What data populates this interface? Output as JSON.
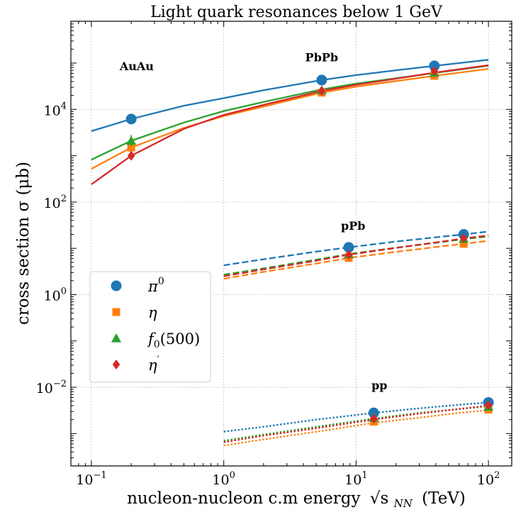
{
  "chart_data": {
    "type": "scatter",
    "title": "Light quark resonances below 1 GeV",
    "xlabel": "nucleon-nucleon c.m energy",
    "xlabel_sym": "√s",
    "xlabel_sub": "NN",
    "xlabel_unit": "(TeV)",
    "ylabel": "cross section σ (μb)",
    "x_scale": "log",
    "y_scale": "log",
    "xlim": [
      0.07,
      150
    ],
    "ylim": [
      0.0002,
      800000
    ],
    "x_ticks": [
      {
        "value": 0.1,
        "base": "10",
        "exp": "−1"
      },
      {
        "value": 1,
        "base": "10",
        "exp": "0"
      },
      {
        "value": 10,
        "base": "10",
        "exp": "1"
      },
      {
        "value": 100,
        "base": "10",
        "exp": "2"
      }
    ],
    "y_ticks": [
      {
        "value": 0.01,
        "base": "10",
        "exp": "−2"
      },
      {
        "value": 1,
        "base": "10",
        "exp": "0"
      },
      {
        "value": 100,
        "base": "10",
        "exp": "2"
      },
      {
        "value": 10000,
        "base": "10",
        "exp": "4"
      }
    ],
    "grid": true,
    "legend_position": "center-left",
    "annotations": [
      {
        "text": "AuAu",
        "x": 0.22,
        "y": 70000
      },
      {
        "text": "PbPb",
        "x": 5.5,
        "y": 110000
      },
      {
        "text": "pPb",
        "x": 9.5,
        "y": 25
      },
      {
        "text": "pp",
        "x": 15,
        "y": 0.009
      }
    ],
    "series": [
      {
        "name": "π0",
        "legend_base": "π",
        "legend_sup": "0",
        "color": "#1f77b4",
        "marker": "circle",
        "points": [
          {
            "x": 0.2,
            "y": 6200
          },
          {
            "x": 5.5,
            "y": 43000
          },
          {
            "x": 39,
            "y": 87000
          },
          {
            "x": 8.8,
            "y": 10.5
          },
          {
            "x": 65,
            "y": 20
          },
          {
            "x": 13.6,
            "y": 0.0028
          },
          {
            "x": 100,
            "y": 0.0047
          }
        ],
        "curves": [
          {
            "style": "solid",
            "points": [
              [
                0.1,
                3400
              ],
              [
                0.2,
                6200
              ],
              [
                0.5,
                12000
              ],
              [
                1,
                17500
              ],
              [
                2,
                26000
              ],
              [
                5.5,
                43000
              ],
              [
                10,
                55000
              ],
              [
                20,
                70000
              ],
              [
                39,
                87000
              ],
              [
                100,
                118000
              ]
            ]
          },
          {
            "style": "dashed",
            "points": [
              [
                1,
                4.3
              ],
              [
                2,
                5.8
              ],
              [
                5,
                8.5
              ],
              [
                8.8,
                10.5
              ],
              [
                20,
                14
              ],
              [
                50,
                18.5
              ],
              [
                65,
                20
              ],
              [
                100,
                23
              ]
            ]
          },
          {
            "style": "dotted",
            "points": [
              [
                1,
                0.0011
              ],
              [
                2,
                0.0014
              ],
              [
                5,
                0.002
              ],
              [
                13.6,
                0.0028
              ],
              [
                30,
                0.0035
              ],
              [
                60,
                0.0042
              ],
              [
                100,
                0.0047
              ]
            ]
          }
        ]
      },
      {
        "name": "η",
        "legend_base": "η",
        "legend_sup": "",
        "color": "#ff7f0e",
        "marker": "square",
        "points": [
          {
            "x": 0.2,
            "y": 1500
          },
          {
            "x": 5.5,
            "y": 23000
          },
          {
            "x": 39,
            "y": 53000
          },
          {
            "x": 8.8,
            "y": 6.2
          },
          {
            "x": 65,
            "y": 12.5
          },
          {
            "x": 13.6,
            "y": 0.0018
          },
          {
            "x": 100,
            "y": 0.0033
          }
        ],
        "curves": [
          {
            "style": "solid",
            "points": [
              [
                0.1,
                520
              ],
              [
                0.2,
                1500
              ],
              [
                0.5,
                4000
              ],
              [
                1,
                7200
              ],
              [
                2,
                11500
              ],
              [
                5.5,
                23000
              ],
              [
                10,
                31000
              ],
              [
                20,
                41000
              ],
              [
                39,
                53000
              ],
              [
                100,
                75000
              ]
            ]
          },
          {
            "style": "dashed",
            "points": [
              [
                1,
                2.2
              ],
              [
                2,
                3.1
              ],
              [
                5,
                4.7
              ],
              [
                8.8,
                6.2
              ],
              [
                20,
                8.4
              ],
              [
                50,
                11.5
              ],
              [
                65,
                12.5
              ],
              [
                100,
                14.5
              ]
            ]
          },
          {
            "style": "dotted",
            "points": [
              [
                1,
                0.00055
              ],
              [
                2,
                0.00075
              ],
              [
                5,
                0.0011
              ],
              [
                13.6,
                0.0017
              ],
              [
                30,
                0.0022
              ],
              [
                60,
                0.0028
              ],
              [
                100,
                0.0032
              ]
            ]
          }
        ]
      },
      {
        "name": "f0(500)",
        "legend_base": "f",
        "legend_sub": "0",
        "legend_tail": "(500)",
        "color": "#2ca02c",
        "marker": "triangle",
        "points": [
          {
            "x": 0.2,
            "y": 2100,
            "yerr_low": 1600,
            "yerr_high": 2800
          },
          {
            "x": 5.5,
            "y": 26000
          },
          {
            "x": 39,
            "y": 62000
          },
          {
            "x": 8.8,
            "y": 7.5
          },
          {
            "x": 65,
            "y": 16
          },
          {
            "x": 13.6,
            "y": 0.0022
          },
          {
            "x": 100,
            "y": 0.0038
          }
        ],
        "curves": [
          {
            "style": "solid",
            "points": [
              [
                0.1,
                820
              ],
              [
                0.2,
                2100
              ],
              [
                0.5,
                5200
              ],
              [
                1,
                9200
              ],
              [
                2,
                14500
              ],
              [
                5.5,
                27000
              ],
              [
                10,
                36000
              ],
              [
                20,
                47000
              ],
              [
                39,
                61000
              ],
              [
                100,
                88000
              ]
            ]
          },
          {
            "style": "dashed",
            "points": [
              [
                1,
                2.7
              ],
              [
                2,
                3.7
              ],
              [
                5,
                5.7
              ],
              [
                8.8,
                7.5
              ],
              [
                20,
                10.3
              ],
              [
                50,
                14.3
              ],
              [
                65,
                15.8
              ],
              [
                100,
                18
              ]
            ]
          },
          {
            "style": "dotted",
            "points": [
              [
                1,
                0.0007
              ],
              [
                2,
                0.00095
              ],
              [
                5,
                0.0014
              ],
              [
                13.6,
                0.0021
              ],
              [
                30,
                0.0028
              ],
              [
                60,
                0.0034
              ],
              [
                100,
                0.0039
              ]
            ]
          }
        ]
      },
      {
        "name": "η′",
        "legend_base": "η",
        "legend_sup": "′",
        "color": "#d62728",
        "marker": "diamond",
        "points": [
          {
            "x": 0.2,
            "y": 1000
          },
          {
            "x": 5.5,
            "y": 25000
          },
          {
            "x": 39,
            "y": 67000
          },
          {
            "x": 8.8,
            "y": 7.3
          },
          {
            "x": 65,
            "y": 16.5
          },
          {
            "x": 13.6,
            "y": 0.0021
          },
          {
            "x": 100,
            "y": 0.0041
          }
        ],
        "curves": [
          {
            "style": "solid",
            "points": [
              [
                0.1,
                240
              ],
              [
                0.2,
                1000
              ],
              [
                0.5,
                3800
              ],
              [
                1,
                7600
              ],
              [
                2,
                12500
              ],
              [
                5.5,
                25000
              ],
              [
                10,
                34000
              ],
              [
                20,
                46000
              ],
              [
                39,
                62000
              ],
              [
                100,
                90000
              ]
            ]
          },
          {
            "style": "dashed",
            "points": [
              [
                1,
                2.5
              ],
              [
                2,
                3.5
              ],
              [
                5,
                5.4
              ],
              [
                8.8,
                7.3
              ],
              [
                20,
                10.2
              ],
              [
                50,
                14.6
              ],
              [
                65,
                16.3
              ],
              [
                100,
                19
              ]
            ]
          },
          {
            "style": "dotted",
            "points": [
              [
                1,
                0.00065
              ],
              [
                2,
                0.0009
              ],
              [
                5,
                0.0013
              ],
              [
                13.6,
                0.002
              ],
              [
                30,
                0.0027
              ],
              [
                60,
                0.0034
              ],
              [
                100,
                0.004
              ]
            ]
          }
        ]
      }
    ]
  }
}
